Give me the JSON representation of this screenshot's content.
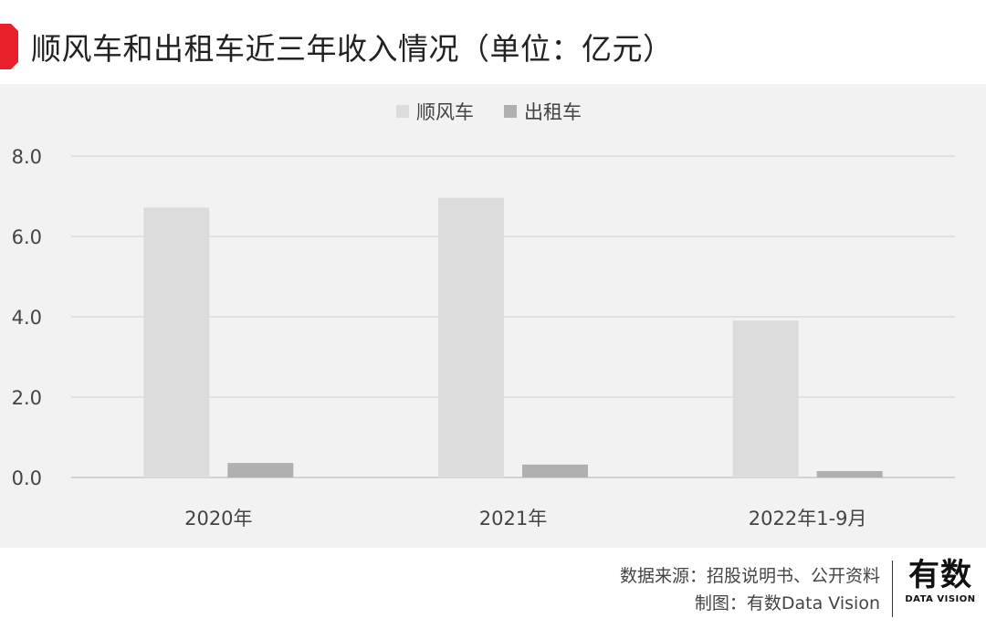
{
  "header": {
    "title": "顺风车和出租车近三年收入情况（单位：亿元）",
    "accent_color": "#e8202a"
  },
  "chart_data": {
    "type": "bar",
    "categories": [
      "2020年",
      "2021年",
      "2022年1-9月"
    ],
    "series": [
      {
        "name": "顺风车",
        "values": [
          6.72,
          6.96,
          3.91
        ],
        "color": "#dcdcdc"
      },
      {
        "name": "出租车",
        "values": [
          0.36,
          0.32,
          0.16
        ],
        "color": "#b0b0b0"
      }
    ],
    "ylim": [
      0,
      8
    ],
    "yticks": [
      "0.0",
      "2.0",
      "4.0",
      "6.0",
      "8.0"
    ],
    "grid": true,
    "legend": "top-center",
    "background": "#f2f2f2"
  },
  "footer": {
    "source": "数据来源：招股说明书、公开资料",
    "credit": "制图：有数Data Vision",
    "logo_main": "有数",
    "logo_sub": "DATA VISION"
  }
}
